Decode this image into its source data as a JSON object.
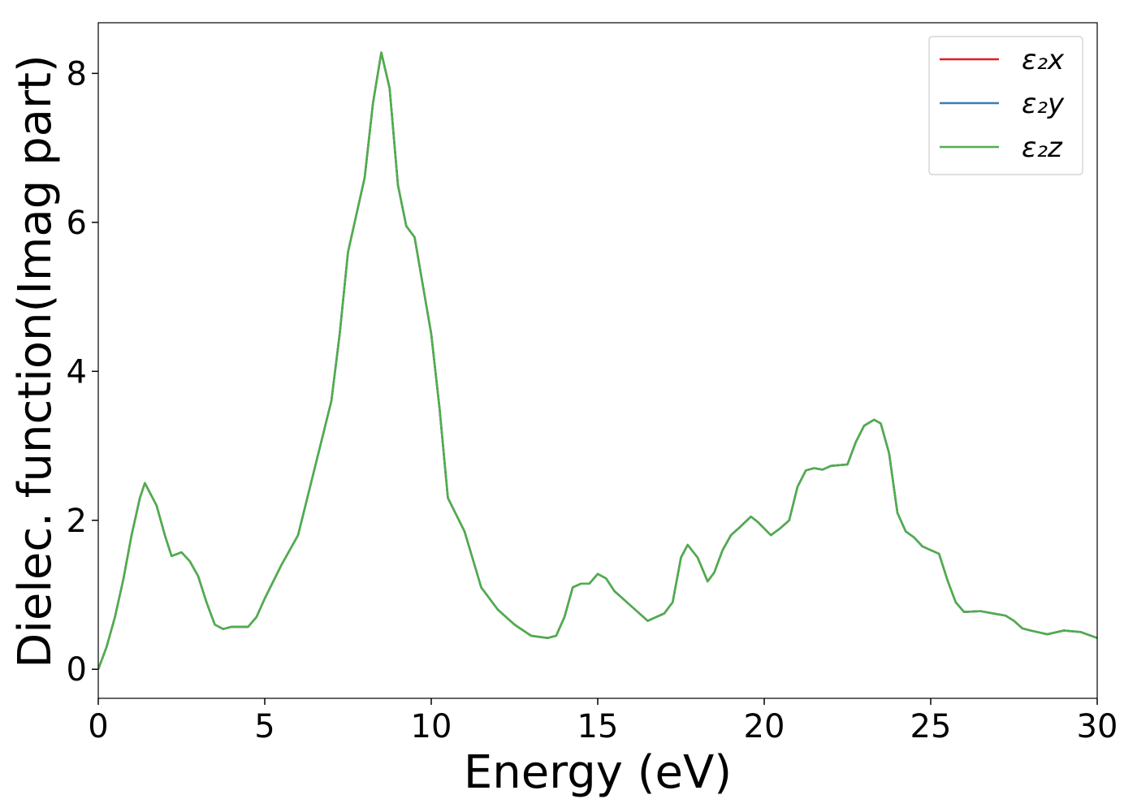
{
  "chart_data": {
    "type": "line",
    "xlabel": "Energy (eV)",
    "ylabel": "Dielec. function(Imag part)",
    "x": [
      0,
      0.25,
      0.5,
      0.75,
      1.0,
      1.25,
      1.4,
      1.75,
      2.0,
      2.2,
      2.5,
      2.75,
      3.0,
      3.25,
      3.5,
      3.75,
      4.0,
      4.5,
      4.75,
      5.0,
      5.5,
      6.0,
      6.5,
      7.0,
      7.25,
      7.5,
      7.75,
      8.0,
      8.25,
      8.5,
      8.75,
      9.0,
      9.25,
      9.5,
      10.0,
      10.25,
      10.5,
      11.0,
      11.5,
      12.0,
      12.5,
      13.0,
      13.5,
      13.75,
      14.0,
      14.25,
      14.5,
      14.75,
      15.0,
      15.25,
      15.5,
      16.0,
      16.5,
      17.0,
      17.25,
      17.5,
      17.7,
      18.0,
      18.3,
      18.5,
      18.75,
      19.0,
      19.25,
      19.6,
      19.8,
      20.2,
      20.5,
      20.75,
      21.0,
      21.25,
      21.5,
      21.75,
      22.0,
      22.5,
      22.75,
      23.0,
      23.3,
      23.5,
      23.75,
      24.0,
      24.25,
      24.5,
      24.75,
      25.0,
      25.25,
      25.5,
      25.75,
      26.0,
      26.5,
      27.0,
      27.25,
      27.5,
      27.75,
      28.0,
      28.5,
      29.0,
      29.5,
      30.0
    ],
    "series": [
      {
        "name": "ε₂x",
        "color": "#e41a1c",
        "values": [
          0,
          0.3,
          0.7,
          1.2,
          1.8,
          2.3,
          2.5,
          2.2,
          1.8,
          1.52,
          1.57,
          1.45,
          1.25,
          0.9,
          0.6,
          0.54,
          0.57,
          0.57,
          0.7,
          0.95,
          1.4,
          1.8,
          2.7,
          3.6,
          4.5,
          5.6,
          6.1,
          6.6,
          7.6,
          8.28,
          7.8,
          6.5,
          5.95,
          5.8,
          4.5,
          3.5,
          2.3,
          1.85,
          1.1,
          0.8,
          0.6,
          0.45,
          0.42,
          0.45,
          0.7,
          1.1,
          1.15,
          1.15,
          1.28,
          1.22,
          1.05,
          0.85,
          0.65,
          0.75,
          0.9,
          1.5,
          1.67,
          1.5,
          1.18,
          1.3,
          1.6,
          1.8,
          1.9,
          2.05,
          1.98,
          1.8,
          1.9,
          2.0,
          2.45,
          2.67,
          2.7,
          2.68,
          2.73,
          2.75,
          3.05,
          3.27,
          3.35,
          3.3,
          2.9,
          2.1,
          1.85,
          1.77,
          1.65,
          1.6,
          1.55,
          1.2,
          0.9,
          0.77,
          0.78,
          0.74,
          0.72,
          0.65,
          0.55,
          0.52,
          0.47,
          0.52,
          0.5,
          0.42
        ]
      },
      {
        "name": "ε₂y",
        "color": "#377eb8",
        "values": [
          0,
          0.3,
          0.7,
          1.2,
          1.8,
          2.3,
          2.5,
          2.2,
          1.8,
          1.52,
          1.57,
          1.45,
          1.25,
          0.9,
          0.6,
          0.54,
          0.57,
          0.57,
          0.7,
          0.95,
          1.4,
          1.8,
          2.7,
          3.6,
          4.5,
          5.6,
          6.1,
          6.6,
          7.6,
          8.28,
          7.8,
          6.5,
          5.95,
          5.8,
          4.5,
          3.5,
          2.3,
          1.85,
          1.1,
          0.8,
          0.6,
          0.45,
          0.42,
          0.45,
          0.7,
          1.1,
          1.15,
          1.15,
          1.28,
          1.22,
          1.05,
          0.85,
          0.65,
          0.75,
          0.9,
          1.5,
          1.67,
          1.5,
          1.18,
          1.3,
          1.6,
          1.8,
          1.9,
          2.05,
          1.98,
          1.8,
          1.9,
          2.0,
          2.45,
          2.67,
          2.7,
          2.68,
          2.73,
          2.75,
          3.05,
          3.27,
          3.35,
          3.3,
          2.9,
          2.1,
          1.85,
          1.77,
          1.65,
          1.6,
          1.55,
          1.2,
          0.9,
          0.77,
          0.78,
          0.74,
          0.72,
          0.65,
          0.55,
          0.52,
          0.47,
          0.52,
          0.5,
          0.42
        ]
      },
      {
        "name": "ε₂z",
        "color": "#4daf4a",
        "values": [
          0,
          0.3,
          0.7,
          1.2,
          1.8,
          2.3,
          2.5,
          2.2,
          1.8,
          1.52,
          1.57,
          1.45,
          1.25,
          0.9,
          0.6,
          0.54,
          0.57,
          0.57,
          0.7,
          0.95,
          1.4,
          1.8,
          2.7,
          3.6,
          4.5,
          5.6,
          6.1,
          6.6,
          7.6,
          8.28,
          7.8,
          6.5,
          5.95,
          5.8,
          4.5,
          3.5,
          2.3,
          1.85,
          1.1,
          0.8,
          0.6,
          0.45,
          0.42,
          0.45,
          0.7,
          1.1,
          1.15,
          1.15,
          1.28,
          1.22,
          1.05,
          0.85,
          0.65,
          0.75,
          0.9,
          1.5,
          1.67,
          1.5,
          1.18,
          1.3,
          1.6,
          1.8,
          1.9,
          2.05,
          1.98,
          1.8,
          1.9,
          2.0,
          2.45,
          2.67,
          2.7,
          2.68,
          2.73,
          2.75,
          3.05,
          3.27,
          3.35,
          3.3,
          2.9,
          2.1,
          1.85,
          1.77,
          1.65,
          1.6,
          1.55,
          1.2,
          0.9,
          0.77,
          0.78,
          0.74,
          0.72,
          0.65,
          0.55,
          0.52,
          0.47,
          0.52,
          0.5,
          0.42
        ]
      }
    ],
    "xlim": [
      0,
      30
    ],
    "ylim": [
      -0.39,
      8.68
    ],
    "xticks": [
      0,
      5,
      10,
      15,
      20,
      25,
      30
    ],
    "yticks": [
      0,
      2,
      4,
      6,
      8
    ],
    "grid": false,
    "legend": "upper right"
  }
}
